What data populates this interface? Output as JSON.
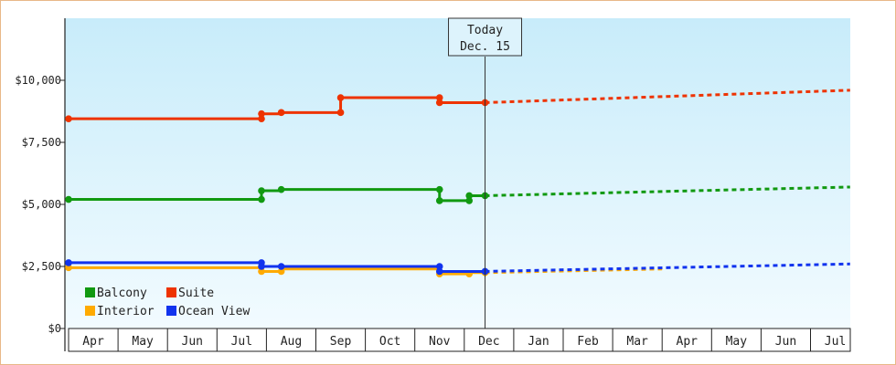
{
  "chart_data": {
    "type": "line",
    "title": "",
    "xlabel": "",
    "ylabel": "",
    "ylim": [
      0,
      12500
    ],
    "y_ticks": [
      {
        "value": 0,
        "label": "$0"
      },
      {
        "value": 2500,
        "label": "$2,500"
      },
      {
        "value": 5000,
        "label": "$5,000"
      },
      {
        "value": 7500,
        "label": "$7,500"
      },
      {
        "value": 10000,
        "label": "$10,000"
      }
    ],
    "x_ticks": [
      "Apr",
      "May",
      "Jun",
      "Jul",
      "Aug",
      "Sep",
      "Oct",
      "Nov",
      "Dec",
      "Jan",
      "Feb",
      "Mar",
      "Apr",
      "May",
      "Jun",
      "Jul"
    ],
    "today_marker": {
      "line1": "Today",
      "line2": "Dec. 15",
      "x": 8.42
    },
    "legend": {
      "placement": "bottom-left"
    },
    "grid": false,
    "series": [
      {
        "name": "Balcony",
        "color": "#119911",
        "history": [
          [
            0,
            5200
          ],
          [
            3.9,
            5200
          ],
          [
            3.9,
            5550
          ],
          [
            4.3,
            5550
          ],
          [
            4.3,
            5600
          ],
          [
            7.5,
            5600
          ],
          [
            7.5,
            5150
          ],
          [
            8.1,
            5150
          ],
          [
            8.1,
            5350
          ],
          [
            8.42,
            5350
          ]
        ],
        "points": [
          [
            0,
            5200
          ],
          [
            3.9,
            5200
          ],
          [
            3.9,
            5550
          ],
          [
            4.3,
            5600
          ],
          [
            7.5,
            5600
          ],
          [
            7.5,
            5150
          ],
          [
            8.1,
            5150
          ],
          [
            8.1,
            5350
          ],
          [
            8.42,
            5350
          ]
        ],
        "forecast": [
          [
            8.42,
            5350
          ],
          [
            15.8,
            5700
          ]
        ]
      },
      {
        "name": "Suite",
        "color": "#ee3300",
        "history": [
          [
            0,
            8450
          ],
          [
            3.9,
            8450
          ],
          [
            3.9,
            8650
          ],
          [
            4.3,
            8650
          ],
          [
            4.3,
            8700
          ],
          [
            5.5,
            8700
          ],
          [
            5.5,
            9300
          ],
          [
            7.5,
            9300
          ],
          [
            7.5,
            9100
          ],
          [
            8.42,
            9100
          ]
        ],
        "points": [
          [
            0,
            8450
          ],
          [
            3.9,
            8450
          ],
          [
            3.9,
            8650
          ],
          [
            4.3,
            8700
          ],
          [
            5.5,
            8700
          ],
          [
            5.5,
            9300
          ],
          [
            7.5,
            9300
          ],
          [
            7.5,
            9100
          ],
          [
            8.42,
            9100
          ]
        ],
        "forecast": [
          [
            8.42,
            9100
          ],
          [
            15.8,
            9600
          ]
        ]
      },
      {
        "name": "Interior",
        "color": "#ffaa00",
        "history": [
          [
            0,
            2450
          ],
          [
            3.9,
            2450
          ],
          [
            3.9,
            2300
          ],
          [
            4.3,
            2300
          ],
          [
            4.3,
            2400
          ],
          [
            7.5,
            2400
          ],
          [
            7.5,
            2200
          ],
          [
            8.1,
            2200
          ],
          [
            8.1,
            2250
          ],
          [
            8.42,
            2250
          ]
        ],
        "points": [
          [
            0,
            2450
          ],
          [
            3.9,
            2300
          ],
          [
            4.3,
            2300
          ],
          [
            7.5,
            2200
          ],
          [
            8.1,
            2200
          ],
          [
            8.42,
            2250
          ]
        ],
        "forecast": [
          [
            8.42,
            2250
          ],
          [
            12.0,
            2400
          ]
        ]
      },
      {
        "name": "Ocean View",
        "color": "#1133ee",
        "history": [
          [
            0,
            2650
          ],
          [
            3.9,
            2650
          ],
          [
            3.9,
            2500
          ],
          [
            4.3,
            2500
          ],
          [
            4.3,
            2500
          ],
          [
            7.5,
            2500
          ],
          [
            7.5,
            2300
          ],
          [
            8.42,
            2300
          ]
        ],
        "points": [
          [
            0,
            2650
          ],
          [
            3.9,
            2650
          ],
          [
            3.9,
            2500
          ],
          [
            4.3,
            2500
          ],
          [
            7.5,
            2500
          ],
          [
            7.5,
            2300
          ],
          [
            8.42,
            2300
          ]
        ],
        "forecast": [
          [
            8.42,
            2300
          ],
          [
            15.8,
            2600
          ]
        ]
      }
    ]
  }
}
